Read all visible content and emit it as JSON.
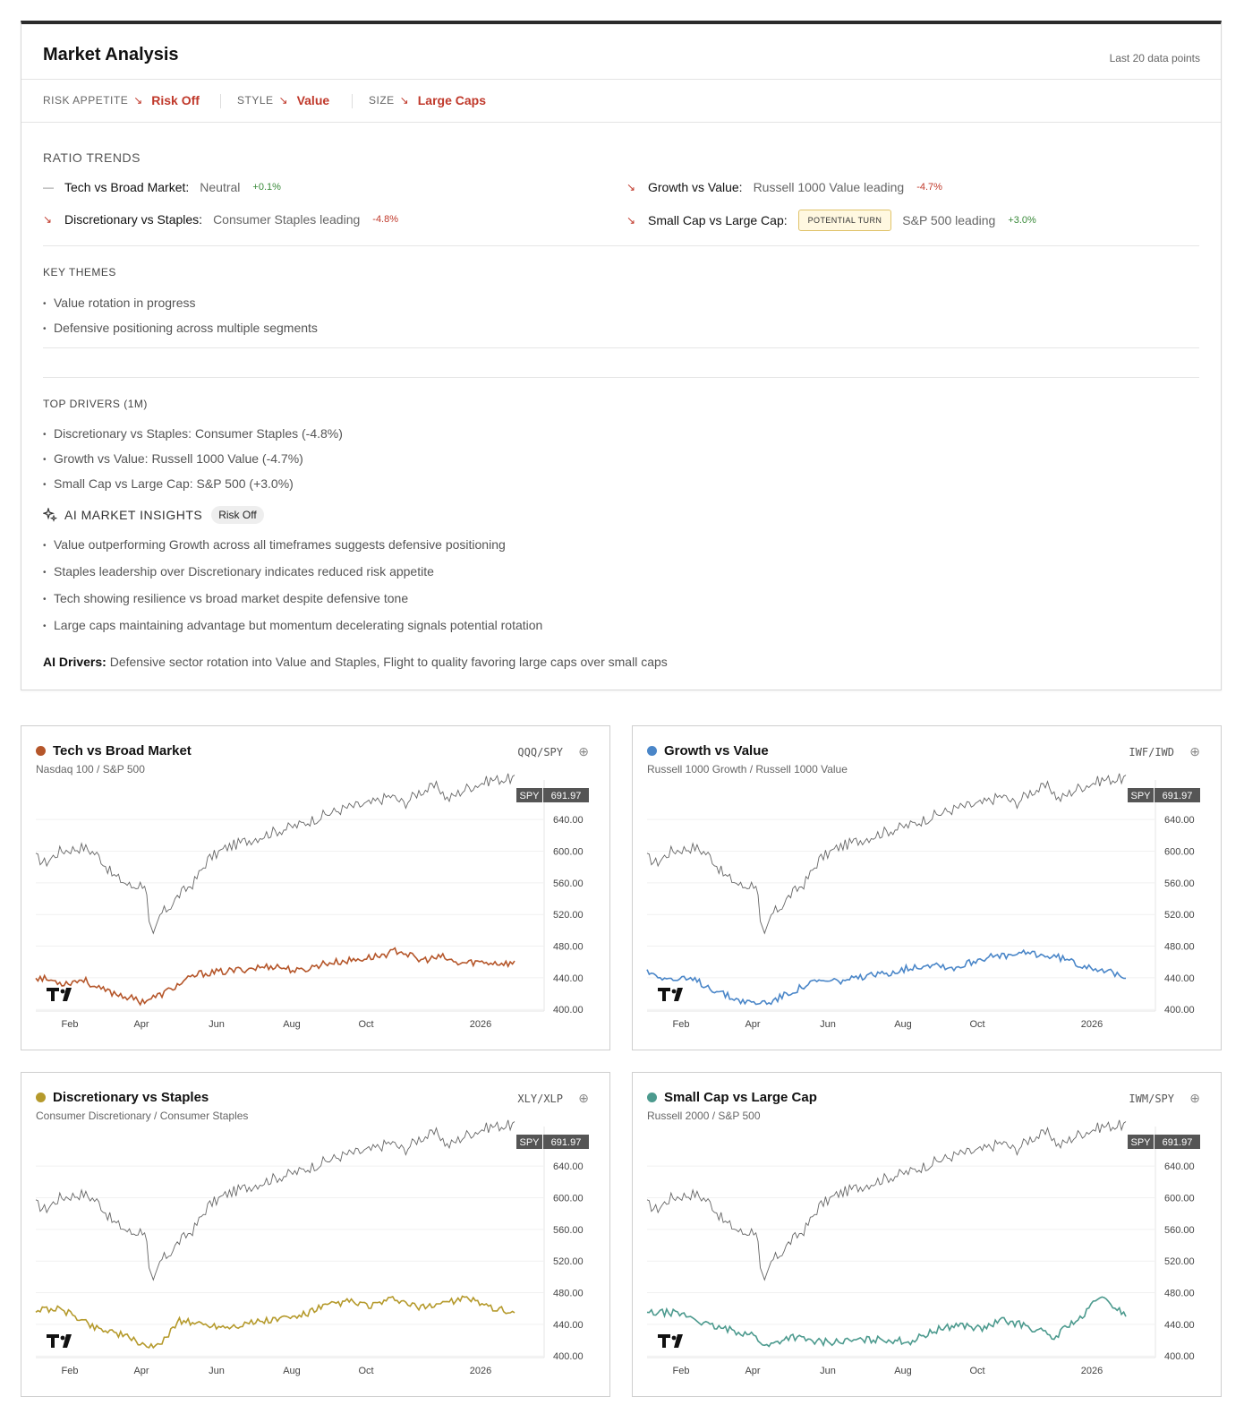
{
  "header": {
    "title": "Market Analysis",
    "subtitle": "Last 20 data points"
  },
  "summary_tags": [
    {
      "key": "RISK APPETITE",
      "value": "Risk Off"
    },
    {
      "key": "STYLE",
      "value": "Value"
    },
    {
      "key": "SIZE",
      "value": "Large Caps"
    }
  ],
  "ratio_trends": {
    "title": "RATIO TRENDS",
    "items": [
      {
        "name": "Tech vs Broad Market:",
        "status": "Neutral",
        "change": "+0.1%"
      },
      {
        "name": "Discretionary vs Staples:",
        "status": "Consumer Staples leading",
        "change": "-4.8%"
      },
      {
        "name": "Growth vs Value:",
        "status": "Russell 1000 Value leading",
        "change": "-4.7%"
      },
      {
        "name": "Small Cap vs Large Cap:",
        "badge": "POTENTIAL TURN",
        "status": "S&P 500 leading",
        "change": "+3.0%"
      }
    ]
  },
  "key_themes": {
    "title": "KEY THEMES",
    "items": [
      "Value rotation in progress",
      "Defensive positioning across multiple segments"
    ]
  },
  "top_drivers": {
    "title": "TOP DRIVERS (1M)",
    "items": [
      "Discretionary vs Staples: Consumer Staples (-4.8%)",
      "Growth vs Value: Russell 1000 Value (-4.7%)",
      "Small Cap vs Large Cap: S&P 500 (+3.0%)"
    ]
  },
  "ai_insights": {
    "title": "AI MARKET INSIGHTS",
    "badge": "Risk Off",
    "items": [
      "Value outperforming Growth across all timeframes suggests defensive positioning",
      "Staples leadership over Discretionary indicates reduced risk appetite",
      "Tech showing resilience vs broad market despite defensive tone",
      "Large caps maintaining advantage but momentum decelerating signals potential rotation"
    ],
    "drivers_label": "AI Drivers:",
    "drivers_text": "Defensive sector rotation into Value and Staples, Flight to quality favoring large caps over small caps"
  },
  "colors": {
    "negative": "#c0392b",
    "positive": "#3a8a3a",
    "tech": "#b5562a",
    "growth": "#4a86c8",
    "disc": "#b59a2c",
    "small": "#4c9a8e",
    "spy": "#666666"
  },
  "cards": [
    {
      "title": "Tech vs Broad Market",
      "subtitle": "Nasdaq 100 / S&P 500",
      "ticker": "QQQ/SPY",
      "color": "#b5562a",
      "ratio_shape": "tech"
    },
    {
      "title": "Growth vs Value",
      "subtitle": "Russell 1000 Growth / Russell 1000 Value",
      "ticker": "IWF/IWD",
      "color": "#4a86c8",
      "ratio_shape": "growth"
    },
    {
      "title": "Discretionary vs Staples",
      "subtitle": "Consumer Discretionary / Consumer Staples",
      "ticker": "XLY/XLP",
      "color": "#b59a2c",
      "ratio_shape": "disc"
    },
    {
      "title": "Small Cap vs Large Cap",
      "subtitle": "Russell 2000 / S&P 500",
      "ticker": "IWM/SPY",
      "color": "#4c9a8e",
      "ratio_shape": "small"
    }
  ],
  "chart_data": [
    {
      "type": "line",
      "series": [
        {
          "name": "SPY",
          "last": "691.97"
        }
      ],
      "yticks": [
        "640.00",
        "600.00",
        "560.00",
        "520.00",
        "480.00",
        "440.00",
        "400.00"
      ],
      "xticks": [
        "Feb",
        "Apr",
        "Jun",
        "Aug",
        "Oct",
        "2026"
      ]
    },
    {
      "type": "line",
      "series": [
        {
          "name": "SPY",
          "last": "691.97"
        }
      ],
      "yticks": [
        "640.00",
        "600.00",
        "560.00",
        "520.00",
        "480.00",
        "440.00",
        "400.00"
      ],
      "xticks": [
        "Feb",
        "Apr",
        "Jun",
        "Aug",
        "Oct",
        "2026"
      ]
    },
    {
      "type": "line",
      "series": [
        {
          "name": "SPY",
          "last": "691.97"
        }
      ],
      "yticks": [
        "640.00",
        "600.00",
        "560.00",
        "520.00",
        "480.00",
        "440.00",
        "400.00"
      ],
      "xticks": [
        "Feb",
        "Apr",
        "Jun",
        "Aug",
        "Oct",
        "2026"
      ]
    },
    {
      "type": "line",
      "series": [
        {
          "name": "SPY",
          "last": "691.97"
        }
      ],
      "yticks": [
        "640.00",
        "600.00",
        "560.00",
        "520.00",
        "480.00",
        "440.00",
        "400.00"
      ],
      "xticks": [
        "Feb",
        "Apr",
        "Jun",
        "Aug",
        "Oct",
        "2026"
      ]
    }
  ]
}
